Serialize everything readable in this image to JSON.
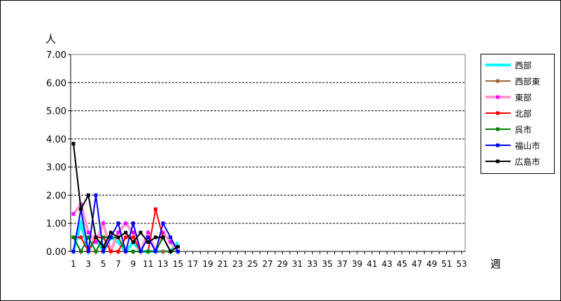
{
  "chart_data": {
    "type": "line",
    "ylabel": "人",
    "xlabel": "週",
    "ylim": [
      0,
      7
    ],
    "yticks": [
      "0.00",
      "1.00",
      "2.00",
      "3.00",
      "4.00",
      "5.00",
      "6.00",
      "7.00"
    ],
    "xlim": [
      1,
      53
    ],
    "xticks": [
      "1",
      "3",
      "5",
      "7",
      "9",
      "11",
      "13",
      "15",
      "17",
      "19",
      "21",
      "23",
      "25",
      "27",
      "29",
      "31",
      "33",
      "35",
      "37",
      "39",
      "41",
      "43",
      "45",
      "47",
      "49",
      "51",
      "53"
    ],
    "grid": true,
    "legend_position": "right",
    "series": [
      {
        "name": "西部",
        "color": "#00FFFF",
        "width": 4,
        "marker": "none",
        "values": [
          0,
          1.0,
          0,
          0.5,
          0,
          0.5,
          0.33,
          0,
          0.33,
          0,
          0,
          0,
          0,
          0,
          0.33
        ]
      },
      {
        "name": "西部東",
        "color": "#996633",
        "width": 2,
        "marker": "square",
        "values": [
          0.5,
          0,
          0,
          0,
          0,
          0,
          0,
          0,
          0,
          0,
          0,
          0,
          0,
          0,
          0
        ]
      },
      {
        "name": "東部",
        "color": "#FF99CC",
        "width": 4,
        "marker": "square",
        "markerColor": "#FF00FF",
        "values": [
          1.33,
          1.67,
          0.67,
          0.33,
          1.0,
          0,
          0.67,
          1.0,
          0.67,
          0,
          0.67,
          0,
          0.67,
          0.33,
          0
        ]
      },
      {
        "name": "北部",
        "color": "#FF0000",
        "width": 2,
        "marker": "square",
        "values": [
          0.5,
          0.5,
          0,
          0.5,
          0.5,
          0,
          0,
          0.5,
          0.5,
          0,
          0,
          1.5,
          0.5,
          0,
          0
        ]
      },
      {
        "name": "呉市",
        "color": "#008000",
        "width": 2,
        "marker": "square",
        "values": [
          0.5,
          0,
          0.5,
          0,
          0.5,
          0.5,
          0.5,
          0,
          0,
          0,
          0,
          0,
          0.5,
          0,
          0
        ]
      },
      {
        "name": "福山市",
        "color": "#0000FF",
        "width": 2,
        "marker": "square",
        "values": [
          0,
          1.5,
          0,
          2.0,
          0,
          0.5,
          1.0,
          0,
          1.0,
          0,
          0.5,
          0,
          1.0,
          0.5,
          0
        ]
      },
      {
        "name": "広島市",
        "color": "#000000",
        "width": 2,
        "marker": "square",
        "values": [
          3.83,
          1.5,
          2.0,
          0.5,
          0.17,
          0.67,
          0.5,
          0.67,
          0.33,
          0.67,
          0.33,
          0.5,
          0.5,
          0,
          0.17
        ]
      }
    ]
  }
}
